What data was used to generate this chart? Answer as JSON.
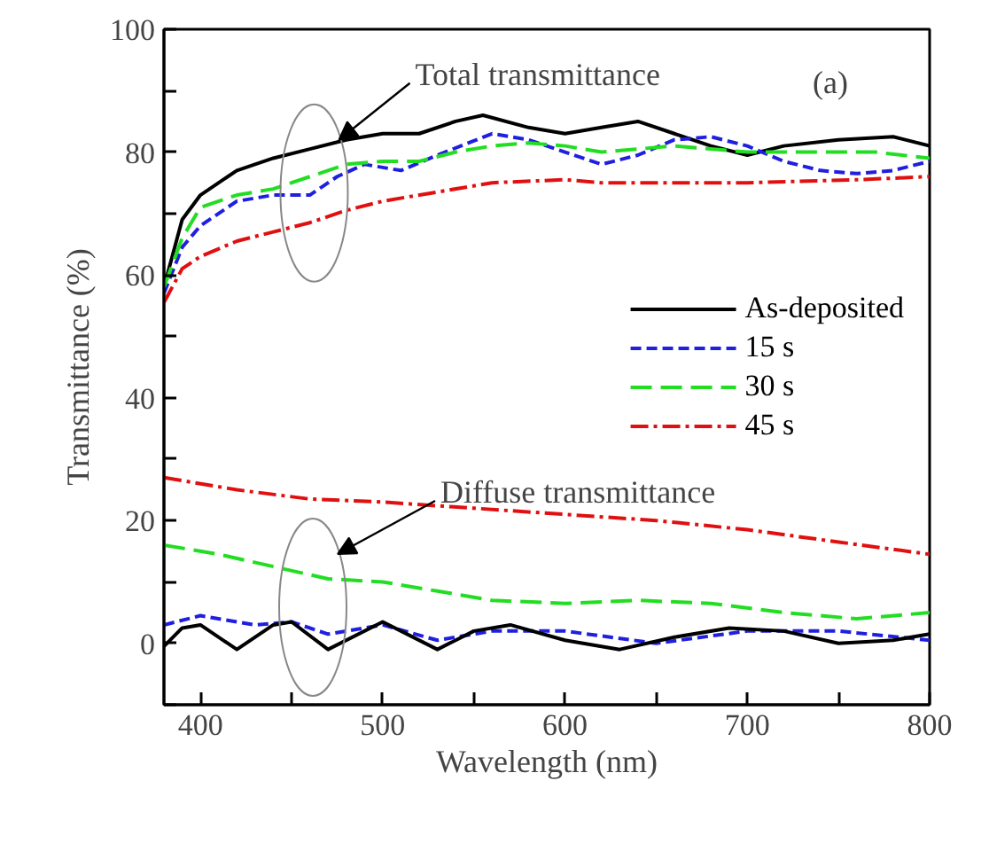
{
  "chart_data": {
    "type": "line",
    "xlabel": "Wavelength (nm)",
    "ylabel": "Transmittance (%)",
    "xlim": [
      380,
      800
    ],
    "ylim": [
      -10,
      100
    ],
    "xticks": [
      400,
      {
        "value": 450,
        "label": null
      },
      500,
      {
        "value": 550,
        "label": null
      },
      600,
      {
        "value": 650,
        "label": null
      },
      700,
      {
        "value": 750,
        "label": null
      },
      800
    ],
    "yticks": [
      {
        "value": -10,
        "label": null
      },
      0,
      {
        "value": 10,
        "label": null
      },
      20,
      {
        "value": 30,
        "label": null
      },
      40,
      {
        "value": 50,
        "label": null
      },
      60,
      {
        "value": 70,
        "label": null
      },
      80,
      {
        "value": 90,
        "label": null
      },
      100
    ],
    "grid": false,
    "legend": "right",
    "annotations": [
      {
        "text": "Total transmittance",
        "x": 476,
        "y": 82
      },
      "Diffuse transmittance",
      "(a)"
    ],
    "series": [
      {
        "name": "As-deposited",
        "color": "#000000",
        "line_style": "solid",
        "x": [
          380,
          390,
          400,
          420,
          440,
          460,
          480,
          500,
          520,
          540,
          555,
          580,
          600,
          620,
          640,
          660,
          680,
          700,
          720,
          750,
          780,
          800
        ],
        "values": [
          58,
          69,
          73,
          77,
          79,
          80.5,
          82,
          83,
          83,
          85,
          86,
          84,
          83,
          84,
          85,
          83,
          81,
          79.5,
          81,
          82,
          82.5,
          81
        ]
      },
      {
        "name": "15 s",
        "color": "#1f1fe0",
        "line_style": "dashed",
        "x": [
          380,
          390,
          400,
          420,
          440,
          460,
          475,
          490,
          510,
          530,
          560,
          580,
          600,
          620,
          640,
          660,
          680,
          700,
          720,
          740,
          760,
          780,
          800
        ],
        "values": [
          57,
          64.5,
          68,
          72,
          73,
          73,
          76,
          78,
          77,
          79.5,
          83,
          82,
          80,
          78,
          79.5,
          82,
          82.5,
          81,
          78.5,
          77,
          76.5,
          77,
          78.5
        ]
      },
      {
        "name": "30 s",
        "color": "#22dd22",
        "line_style": "longdash",
        "x": [
          380,
          390,
          400,
          420,
          440,
          460,
          480,
          500,
          520,
          540,
          560,
          580,
          600,
          620,
          640,
          660,
          680,
          700,
          740,
          770,
          800
        ],
        "values": [
          58,
          66,
          71,
          73,
          74,
          76,
          78,
          78.5,
          78.5,
          80,
          81,
          81.5,
          81,
          80,
          80.5,
          81,
          80.5,
          80,
          80,
          80,
          79
        ]
      },
      {
        "name": "45 s",
        "color": "#e01010",
        "line_style": "dashdot",
        "x": [
          380,
          390,
          400,
          420,
          440,
          460,
          480,
          500,
          530,
          560,
          600,
          620,
          700,
          760,
          800
        ],
        "values": [
          55.5,
          61,
          63,
          65.5,
          67,
          68.5,
          70.5,
          72,
          73.5,
          75,
          75.5,
          75,
          75,
          75.5,
          76
        ]
      },
      {
        "color": "#e01010",
        "line_style": "dashdot",
        "x": [
          380,
          420,
          460,
          500,
          550,
          600,
          650,
          700,
          750,
          800
        ],
        "values": [
          27,
          25,
          23.5,
          23,
          22,
          21,
          20,
          18.5,
          16.5,
          14.5
        ]
      },
      {
        "color": "#22dd22",
        "line_style": "longdash",
        "x": [
          380,
          410,
          440,
          470,
          500,
          530,
          560,
          600,
          640,
          680,
          720,
          760,
          800
        ],
        "values": [
          16,
          14.5,
          12.5,
          10.5,
          10,
          8.5,
          7,
          6.5,
          7,
          6.5,
          5,
          4,
          5
        ]
      },
      {
        "color": "#1f1fe0",
        "line_style": "dashed",
        "x": [
          380,
          400,
          430,
          450,
          470,
          500,
          530,
          560,
          600,
          650,
          700,
          750,
          800
        ],
        "values": [
          3,
          4.5,
          3,
          3.5,
          1.5,
          3,
          0.5,
          2,
          2,
          0,
          2,
          2,
          0.5
        ]
      },
      {
        "color": "#000000",
        "line_style": "solid",
        "x": [
          380,
          390,
          400,
          420,
          440,
          450,
          470,
          500,
          530,
          550,
          570,
          600,
          630,
          660,
          690,
          720,
          750,
          780,
          800
        ],
        "values": [
          -0.5,
          2.5,
          3,
          -1,
          3,
          3.5,
          -1,
          3.5,
          -1,
          2,
          3,
          0.5,
          -1,
          1,
          2.5,
          2,
          0,
          0.5,
          1.5
        ]
      }
    ]
  }
}
